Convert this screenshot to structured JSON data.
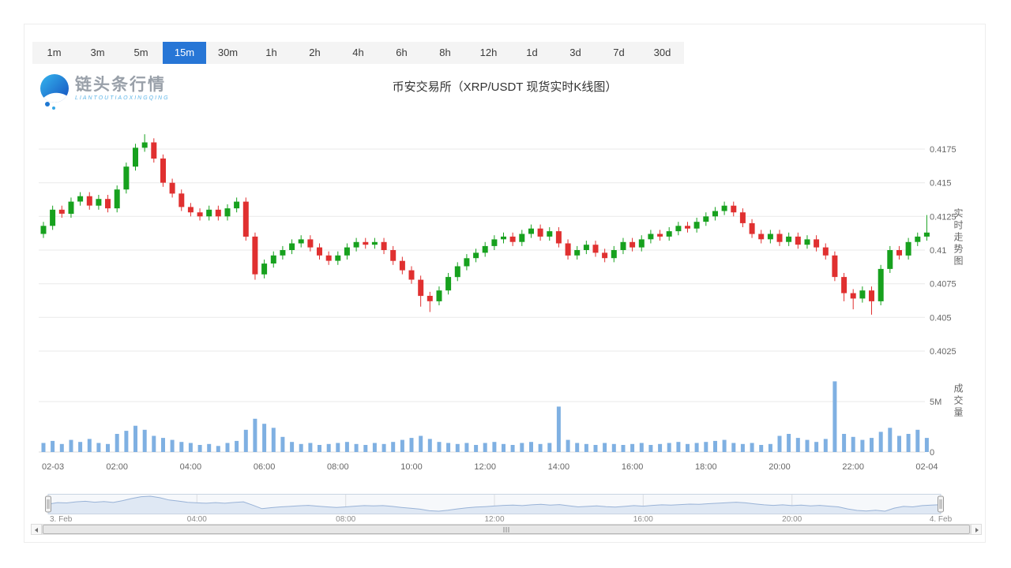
{
  "timeframes": {
    "options": [
      "1m",
      "3m",
      "5m",
      "15m",
      "30m",
      "1h",
      "2h",
      "4h",
      "6h",
      "8h",
      "12h",
      "1d",
      "3d",
      "7d",
      "30d"
    ],
    "selected": "15m",
    "selected_index": 3
  },
  "header": {
    "logo_title": "链头条行情",
    "logo_subtitle": "LIANTOUTIAOXINGQING",
    "chart_title": "币安交易所（XRP/USDT 现货实时K线图）"
  },
  "axes": {
    "price_gridlines": [
      0.4175,
      0.415,
      0.4125,
      0.41,
      0.4075,
      0.405,
      0.4025
    ],
    "volume_gridlines": [
      {
        "label": "5M",
        "value": 5
      },
      {
        "label": "0",
        "value": 0
      }
    ],
    "x_labels": [
      "02-03",
      "02:00",
      "04:00",
      "06:00",
      "08:00",
      "10:00",
      "12:00",
      "14:00",
      "16:00",
      "18:00",
      "20:00",
      "22:00",
      "02-04"
    ],
    "price_axis_title": "实时走势图",
    "volume_axis_title": "成交量"
  },
  "navigator": {
    "labels": [
      "3. Feb",
      "04:00",
      "08:00",
      "12:00",
      "16:00",
      "20:00",
      "4. Feb"
    ]
  },
  "colors": {
    "up": "#17a11e",
    "down": "#e03030",
    "volume": "#7fb0e2",
    "accent": "#2776d6",
    "grid": "#e9e9e9",
    "axis_text": "#666666",
    "nav_line": "#9db6d9",
    "nav_fill": "#e7eef8"
  },
  "chart_data": {
    "type": "candlestick",
    "title": "币安交易所（XRP/USDT 现货实时K线图）",
    "exchange": "币安交易所",
    "symbol": "XRP/USDT",
    "interval": "15m",
    "start": "02-03 00:00",
    "end": "02-04 00:00",
    "interval_minutes": 15,
    "ylim_price": [
      0.4025,
      0.4175
    ],
    "ylim_volume_m": [
      0,
      5
    ],
    "columns": [
      "open",
      "high",
      "low",
      "close",
      "volume_m"
    ],
    "candles": [
      [
        0.4112,
        0.4121,
        0.4109,
        0.4118,
        0.9
      ],
      [
        0.4118,
        0.4133,
        0.4115,
        0.413,
        1.1
      ],
      [
        0.413,
        0.4133,
        0.4124,
        0.4127,
        0.8
      ],
      [
        0.4127,
        0.4139,
        0.4124,
        0.4136,
        1.2
      ],
      [
        0.4136,
        0.4143,
        0.4133,
        0.414,
        1.0
      ],
      [
        0.414,
        0.4143,
        0.413,
        0.4133,
        1.3
      ],
      [
        0.4133,
        0.4141,
        0.413,
        0.4138,
        0.9
      ],
      [
        0.4138,
        0.4141,
        0.4128,
        0.4131,
        0.8
      ],
      [
        0.4131,
        0.4148,
        0.4128,
        0.4145,
        1.8
      ],
      [
        0.4145,
        0.4165,
        0.4142,
        0.4162,
        2.1
      ],
      [
        0.4162,
        0.4179,
        0.4159,
        0.4176,
        2.6
      ],
      [
        0.4176,
        0.4186,
        0.4173,
        0.418,
        2.2
      ],
      [
        0.418,
        0.4183,
        0.4165,
        0.4168,
        1.6
      ],
      [
        0.4168,
        0.4171,
        0.4147,
        0.415,
        1.4
      ],
      [
        0.415,
        0.4153,
        0.4139,
        0.4142,
        1.2
      ],
      [
        0.4142,
        0.4145,
        0.4129,
        0.4132,
        1.0
      ],
      [
        0.4132,
        0.4135,
        0.4125,
        0.4128,
        0.9
      ],
      [
        0.4128,
        0.4131,
        0.4122,
        0.4125,
        0.7
      ],
      [
        0.4125,
        0.4133,
        0.4122,
        0.413,
        0.8
      ],
      [
        0.413,
        0.4133,
        0.4122,
        0.4125,
        0.6
      ],
      [
        0.4125,
        0.4134,
        0.4122,
        0.4131,
        0.9
      ],
      [
        0.4131,
        0.4139,
        0.4128,
        0.4136,
        1.1
      ],
      [
        0.4136,
        0.4139,
        0.4107,
        0.411,
        2.2
      ],
      [
        0.411,
        0.4113,
        0.4078,
        0.4082,
        3.3
      ],
      [
        0.4082,
        0.4093,
        0.4079,
        0.409,
        2.8
      ],
      [
        0.409,
        0.4099,
        0.4087,
        0.4096,
        2.4
      ],
      [
        0.4096,
        0.4103,
        0.4093,
        0.41,
        1.5
      ],
      [
        0.41,
        0.4108,
        0.4097,
        0.4105,
        1.0
      ],
      [
        0.4105,
        0.4111,
        0.4102,
        0.4108,
        0.8
      ],
      [
        0.4108,
        0.4111,
        0.4099,
        0.4102,
        0.9
      ],
      [
        0.4102,
        0.4105,
        0.4093,
        0.4096,
        0.7
      ],
      [
        0.4096,
        0.4099,
        0.4089,
        0.4092,
        0.8
      ],
      [
        0.4092,
        0.4099,
        0.4089,
        0.4096,
        0.9
      ],
      [
        0.4096,
        0.4105,
        0.4093,
        0.4102,
        1.0
      ],
      [
        0.4102,
        0.4109,
        0.4099,
        0.4106,
        0.8
      ],
      [
        0.4106,
        0.4109,
        0.4101,
        0.4104,
        0.7
      ],
      [
        0.4104,
        0.4109,
        0.4101,
        0.4106,
        0.9
      ],
      [
        0.4106,
        0.4109,
        0.4097,
        0.41,
        0.8
      ],
      [
        0.41,
        0.4103,
        0.4089,
        0.4092,
        1.0
      ],
      [
        0.4092,
        0.4095,
        0.4082,
        0.4085,
        1.2
      ],
      [
        0.4085,
        0.4088,
        0.4075,
        0.4078,
        1.4
      ],
      [
        0.4078,
        0.4081,
        0.4058,
        0.4066,
        1.6
      ],
      [
        0.4066,
        0.4069,
        0.4054,
        0.4062,
        1.3
      ],
      [
        0.4062,
        0.4073,
        0.4059,
        0.407,
        1.0
      ],
      [
        0.407,
        0.4083,
        0.4067,
        0.408,
        0.9
      ],
      [
        0.408,
        0.4091,
        0.4077,
        0.4088,
        0.8
      ],
      [
        0.4088,
        0.4097,
        0.4085,
        0.4094,
        0.9
      ],
      [
        0.4094,
        0.4101,
        0.4091,
        0.4098,
        0.7
      ],
      [
        0.4098,
        0.4106,
        0.4095,
        0.4103,
        0.9
      ],
      [
        0.4103,
        0.4111,
        0.41,
        0.4108,
        1.0
      ],
      [
        0.4108,
        0.4113,
        0.4105,
        0.411,
        0.8
      ],
      [
        0.411,
        0.4113,
        0.4103,
        0.4106,
        0.7
      ],
      [
        0.4106,
        0.4115,
        0.4103,
        0.4112,
        0.9
      ],
      [
        0.4112,
        0.4119,
        0.4109,
        0.4116,
        1.0
      ],
      [
        0.4116,
        0.4119,
        0.4107,
        0.411,
        0.8
      ],
      [
        0.411,
        0.4117,
        0.4107,
        0.4114,
        0.9
      ],
      [
        0.4114,
        0.4117,
        0.4102,
        0.4105,
        4.5
      ],
      [
        0.4105,
        0.4108,
        0.4093,
        0.4096,
        1.2
      ],
      [
        0.4096,
        0.4103,
        0.4093,
        0.41,
        0.9
      ],
      [
        0.41,
        0.4107,
        0.4097,
        0.4104,
        0.8
      ],
      [
        0.4104,
        0.4107,
        0.4095,
        0.4098,
        0.7
      ],
      [
        0.4098,
        0.4101,
        0.4091,
        0.4094,
        0.9
      ],
      [
        0.4094,
        0.4103,
        0.4091,
        0.41,
        0.8
      ],
      [
        0.41,
        0.4109,
        0.4097,
        0.4106,
        0.7
      ],
      [
        0.4106,
        0.4109,
        0.4099,
        0.4102,
        0.8
      ],
      [
        0.4102,
        0.4111,
        0.4099,
        0.4108,
        0.9
      ],
      [
        0.4108,
        0.4115,
        0.4105,
        0.4112,
        0.7
      ],
      [
        0.4112,
        0.4115,
        0.4107,
        0.411,
        0.8
      ],
      [
        0.411,
        0.4117,
        0.4107,
        0.4114,
        0.9
      ],
      [
        0.4114,
        0.4121,
        0.4111,
        0.4118,
        1.0
      ],
      [
        0.4118,
        0.4121,
        0.4113,
        0.4116,
        0.8
      ],
      [
        0.4116,
        0.4124,
        0.4113,
        0.4121,
        0.9
      ],
      [
        0.4121,
        0.4128,
        0.4118,
        0.4125,
        1.0
      ],
      [
        0.4125,
        0.4132,
        0.4122,
        0.4129,
        1.1
      ],
      [
        0.4129,
        0.4136,
        0.4126,
        0.4133,
        1.2
      ],
      [
        0.4133,
        0.4136,
        0.4125,
        0.4128,
        0.9
      ],
      [
        0.4128,
        0.4131,
        0.4117,
        0.412,
        0.8
      ],
      [
        0.412,
        0.4123,
        0.4109,
        0.4112,
        0.9
      ],
      [
        0.4112,
        0.4115,
        0.4105,
        0.4108,
        0.7
      ],
      [
        0.4108,
        0.4115,
        0.4105,
        0.4112,
        0.8
      ],
      [
        0.4112,
        0.4115,
        0.4103,
        0.4106,
        1.6
      ],
      [
        0.4106,
        0.4113,
        0.4103,
        0.411,
        1.8
      ],
      [
        0.411,
        0.4113,
        0.4101,
        0.4104,
        1.4
      ],
      [
        0.4104,
        0.4111,
        0.4101,
        0.4108,
        1.2
      ],
      [
        0.4108,
        0.4111,
        0.4099,
        0.4102,
        1.0
      ],
      [
        0.4102,
        0.4105,
        0.4093,
        0.4096,
        1.3
      ],
      [
        0.4096,
        0.4099,
        0.4077,
        0.408,
        7.0
      ],
      [
        0.408,
        0.4083,
        0.4062,
        0.4068,
        1.8
      ],
      [
        0.4068,
        0.4071,
        0.4056,
        0.4064,
        1.5
      ],
      [
        0.4064,
        0.4073,
        0.4061,
        0.407,
        1.2
      ],
      [
        0.407,
        0.4073,
        0.4052,
        0.4062,
        1.4
      ],
      [
        0.4062,
        0.4089,
        0.4059,
        0.4086,
        2.0
      ],
      [
        0.4086,
        0.4103,
        0.4083,
        0.41,
        2.4
      ],
      [
        0.41,
        0.4103,
        0.4093,
        0.4096,
        1.6
      ],
      [
        0.4096,
        0.4109,
        0.4093,
        0.4106,
        1.8
      ],
      [
        0.4106,
        0.4113,
        0.4103,
        0.411,
        2.2
      ],
      [
        0.411,
        0.4126,
        0.4107,
        0.4113,
        1.4
      ]
    ]
  }
}
